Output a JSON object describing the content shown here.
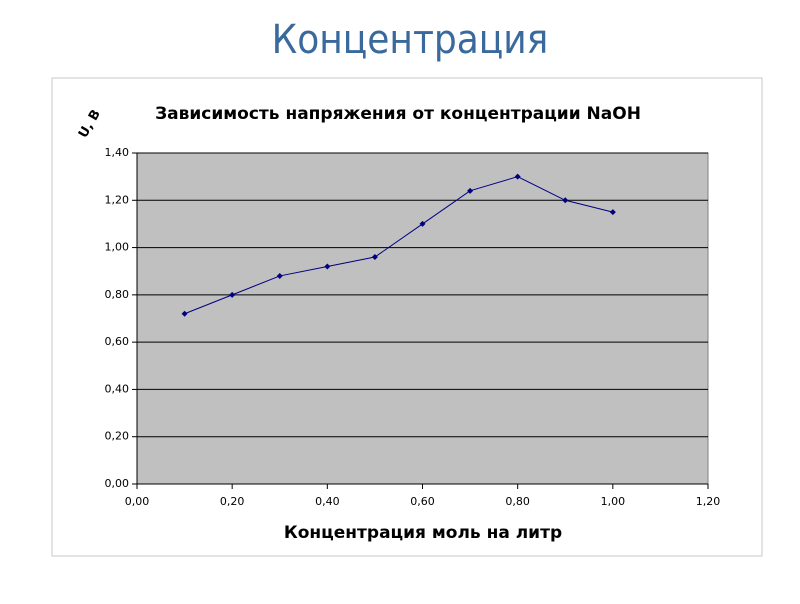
{
  "heading": "Концентрация",
  "chart_data": {
    "type": "line",
    "title": "Зависимость напряжения от концентрации NaOH",
    "x_label": "Концентрация моль на литр",
    "y_label": "U, B",
    "x": [
      0.1,
      0.2,
      0.3,
      0.4,
      0.5,
      0.6,
      0.7,
      0.8,
      0.9,
      1.0
    ],
    "values": [
      0.72,
      0.8,
      0.88,
      0.92,
      0.96,
      1.1,
      1.24,
      1.3,
      1.2,
      1.15
    ],
    "color": "#000080",
    "xlim": [
      0,
      1.2
    ],
    "ylim": [
      0,
      1.4
    ],
    "xticks": [
      {
        "value": 0,
        "label": "0,00"
      },
      {
        "value": 0.2,
        "label": "0,20"
      },
      {
        "value": 0.4,
        "label": "0,40"
      },
      {
        "value": 0.6,
        "label": "0,60"
      },
      {
        "value": 0.8,
        "label": "0,80"
      },
      {
        "value": 1.0,
        "label": "1,00"
      },
      {
        "value": 1.2,
        "label": "1,20"
      }
    ],
    "yticks": [
      {
        "value": 0,
        "label": "0,00"
      },
      {
        "value": 0.2,
        "label": "0,20"
      },
      {
        "value": 0.4,
        "label": "0,40"
      },
      {
        "value": 0.6,
        "label": "0,60"
      },
      {
        "value": 0.8,
        "label": "0,80"
      },
      {
        "value": 1.0,
        "label": "1,00"
      },
      {
        "value": 1.2,
        "label": "1,20"
      },
      {
        "value": 1.4,
        "label": "1,40"
      }
    ],
    "grid": true
  }
}
